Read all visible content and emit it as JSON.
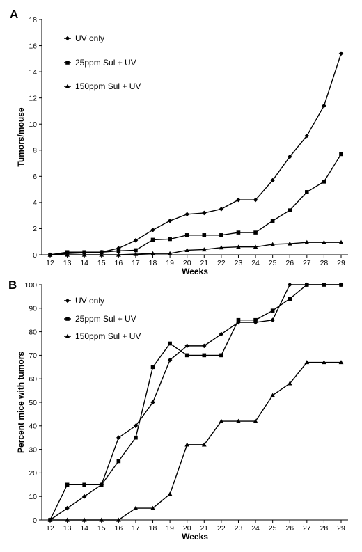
{
  "chart_data": [
    {
      "type": "line",
      "panel": "A",
      "xlabel": "Weeks",
      "ylabel": "Tumors/mouse",
      "x": [
        12,
        13,
        14,
        15,
        16,
        17,
        18,
        19,
        20,
        21,
        22,
        23,
        24,
        25,
        26,
        27,
        28,
        29
      ],
      "ylim": [
        0,
        18
      ],
      "yticks": [
        0,
        2,
        4,
        6,
        8,
        10,
        12,
        14,
        16,
        18
      ],
      "grid": false,
      "legend": "top-left",
      "series": [
        {
          "name": "UV only",
          "marker": "diamond",
          "values": [
            0,
            0.1,
            0.15,
            0.2,
            0.5,
            1.1,
            1.9,
            2.6,
            3.1,
            3.2,
            3.5,
            4.2,
            4.2,
            5.7,
            7.5,
            9.1,
            11.4,
            15.4
          ]
        },
        {
          "name": "25ppm Sul + UV",
          "marker": "square",
          "values": [
            0,
            0.2,
            0.2,
            0.2,
            0.3,
            0.35,
            1.15,
            1.2,
            1.5,
            1.5,
            1.5,
            1.7,
            1.7,
            2.6,
            3.4,
            4.8,
            5.6,
            7.7
          ]
        },
        {
          "name": "150ppm Sul + UV",
          "marker": "triangle",
          "values": [
            0,
            0,
            0,
            0,
            0,
            0.05,
            0.1,
            0.1,
            0.35,
            0.4,
            0.55,
            0.6,
            0.6,
            0.8,
            0.85,
            0.95,
            0.95,
            0.95
          ]
        }
      ]
    },
    {
      "type": "line",
      "panel": "B",
      "xlabel": "Weeks",
      "ylabel": "Percent mice with tumors",
      "x": [
        12,
        13,
        14,
        15,
        16,
        17,
        18,
        19,
        20,
        21,
        22,
        23,
        24,
        25,
        26,
        27,
        28,
        29
      ],
      "ylim": [
        0,
        100
      ],
      "yticks": [
        0,
        10,
        20,
        30,
        40,
        50,
        60,
        70,
        80,
        90,
        100
      ],
      "grid": false,
      "legend": "top-left",
      "series": [
        {
          "name": "UV only",
          "marker": "diamond",
          "values": [
            0,
            5,
            10,
            15,
            35,
            40,
            50,
            68,
            74,
            74,
            79,
            84,
            84,
            85,
            100,
            100,
            100,
            100
          ]
        },
        {
          "name": "25ppm Sul + UV",
          "marker": "square",
          "values": [
            0,
            15,
            15,
            15,
            25,
            35,
            65,
            75,
            70,
            70,
            70,
            85,
            85,
            89,
            94,
            100,
            100,
            100
          ]
        },
        {
          "name": "150ppm Sul + UV",
          "marker": "triangle",
          "values": [
            0,
            0,
            0,
            0,
            0,
            5,
            5,
            11,
            32,
            32,
            42,
            42,
            42,
            53,
            58,
            67,
            67,
            67
          ]
        }
      ]
    }
  ]
}
